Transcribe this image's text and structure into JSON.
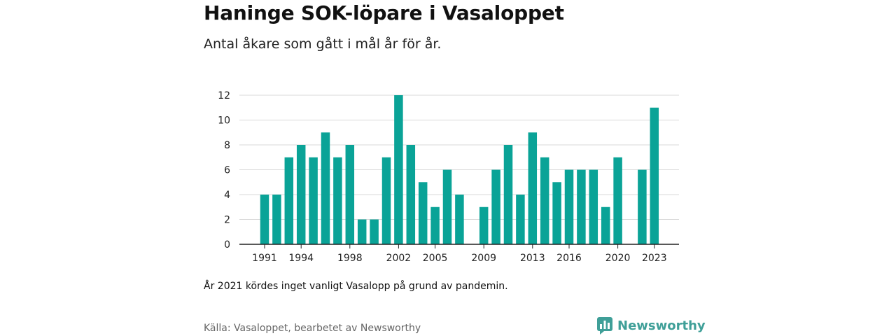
{
  "header": {
    "title": "Haninge SOK-löpare i Vasaloppet",
    "subtitle": "Antal åkare som gått i mål år för år."
  },
  "footer": {
    "note": "År 2021 kördes inget vanligt Vasalopp på grund av pandemin.",
    "source": "Källa: Vasaloppet, bearbetet av Newsworthy",
    "logo_text": "Newsworthy",
    "logo_icon": "bar-chart-speech-icon"
  },
  "colors": {
    "bar": "#0aa397",
    "grid": "#d9d9d9",
    "axis": "#222222",
    "logo": "#3f9f98"
  },
  "chart_data": {
    "type": "bar",
    "title": "Haninge SOK-löpare i Vasaloppet",
    "subtitle": "Antal åkare som gått i mål år för år.",
    "xlabel": "",
    "ylabel": "",
    "ylim": [
      0,
      12
    ],
    "yticks": [
      0,
      2,
      4,
      6,
      8,
      10,
      12
    ],
    "xticks": [
      1991,
      1994,
      1998,
      2002,
      2005,
      2009,
      2013,
      2016,
      2020,
      2023
    ],
    "grid": true,
    "legend": "none",
    "categories": [
      1991,
      1992,
      1993,
      1994,
      1995,
      1996,
      1997,
      1998,
      1999,
      2000,
      2001,
      2002,
      2003,
      2004,
      2005,
      2006,
      2007,
      2008,
      2009,
      2010,
      2011,
      2012,
      2013,
      2014,
      2015,
      2016,
      2017,
      2018,
      2019,
      2020,
      2021,
      2022,
      2023
    ],
    "values": [
      4,
      4,
      7,
      8,
      7,
      9,
      7,
      8,
      2,
      2,
      7,
      12,
      8,
      5,
      3,
      6,
      4,
      0,
      3,
      6,
      8,
      4,
      9,
      7,
      5,
      6,
      6,
      6,
      3,
      7,
      0,
      6,
      11
    ]
  }
}
